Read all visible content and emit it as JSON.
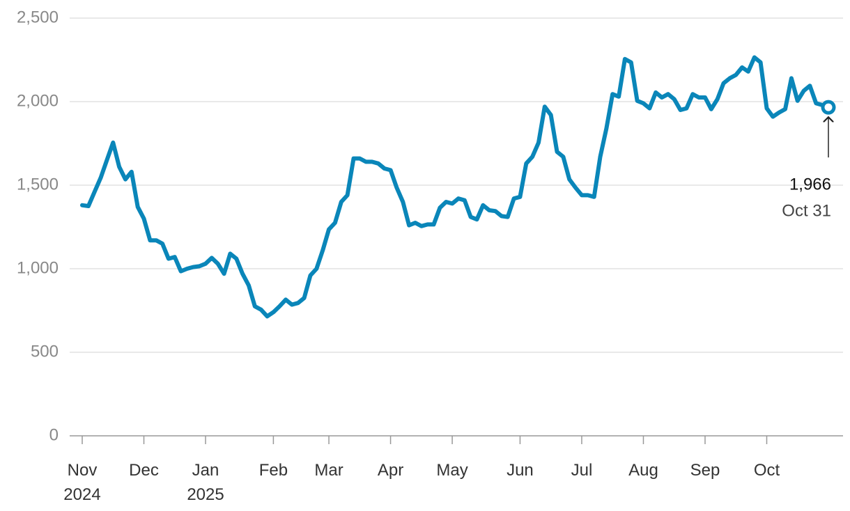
{
  "chart_data": {
    "type": "line",
    "categories": [
      "Nov 2024",
      null,
      null,
      null,
      null,
      null,
      null,
      null,
      null,
      null,
      "Dec",
      null,
      null,
      null,
      null,
      null,
      null,
      null,
      null,
      null,
      "Jan 2025",
      null,
      null,
      null,
      null,
      null,
      null,
      null,
      null,
      null,
      null,
      "Feb",
      null,
      null,
      null,
      null,
      null,
      null,
      null,
      null,
      "Mar",
      null,
      null,
      null,
      null,
      null,
      null,
      null,
      null,
      null,
      "Apr",
      null,
      null,
      null,
      null,
      null,
      null,
      null,
      null,
      null,
      "May",
      null,
      null,
      null,
      null,
      null,
      null,
      null,
      null,
      null,
      null,
      "Jun",
      null,
      null,
      null,
      null,
      null,
      null,
      null,
      null,
      null,
      "Jul",
      null,
      null,
      null,
      null,
      null,
      null,
      null,
      null,
      null,
      "Aug",
      null,
      null,
      null,
      null,
      null,
      null,
      null,
      null,
      null,
      "Sep",
      null,
      null,
      null,
      null,
      null,
      null,
      null,
      null,
      null,
      "Oct",
      null,
      null,
      null,
      null,
      null,
      null,
      null,
      null,
      null,
      null
    ],
    "values": [
      1380,
      1375,
      1460,
      1545,
      1650,
      1755,
      1610,
      1535,
      1580,
      1370,
      1300,
      1170,
      1170,
      1150,
      1060,
      1070,
      985,
      1000,
      1010,
      1015,
      1030,
      1065,
      1030,
      970,
      1090,
      1060,
      970,
      900,
      775,
      755,
      715,
      740,
      775,
      815,
      785,
      795,
      825,
      960,
      1000,
      1110,
      1235,
      1275,
      1400,
      1440,
      1660,
      1660,
      1640,
      1640,
      1630,
      1600,
      1590,
      1485,
      1400,
      1260,
      1275,
      1255,
      1265,
      1265,
      1365,
      1400,
      1390,
      1420,
      1410,
      1310,
      1295,
      1380,
      1350,
      1345,
      1315,
      1310,
      1420,
      1430,
      1630,
      1670,
      1755,
      1970,
      1920,
      1700,
      1670,
      1535,
      1485,
      1440,
      1440,
      1430,
      1670,
      1840,
      2045,
      2030,
      2255,
      2235,
      2005,
      1990,
      1960,
      2055,
      2025,
      2045,
      2015,
      1950,
      1960,
      2045,
      2025,
      2025,
      1955,
      2015,
      2110,
      2140,
      2160,
      2205,
      2180,
      2265,
      2235,
      1960,
      1910,
      1935,
      1955,
      2140,
      2005,
      2065,
      2095,
      1990,
      1980,
      1966
    ],
    "color": "#0a86b9",
    "ylim": [
      0,
      2500
    ],
    "yticks": [
      0,
      500,
      {
        "value": 1000,
        "label": "1,000"
      },
      {
        "value": 1500,
        "label": "1,500"
      },
      {
        "value": 2000,
        "label": "2,000"
      },
      {
        "value": 2500,
        "label": "2,500"
      }
    ],
    "grid": true,
    "annotation": {
      "label": "1,966",
      "date": "Oct 31"
    }
  }
}
